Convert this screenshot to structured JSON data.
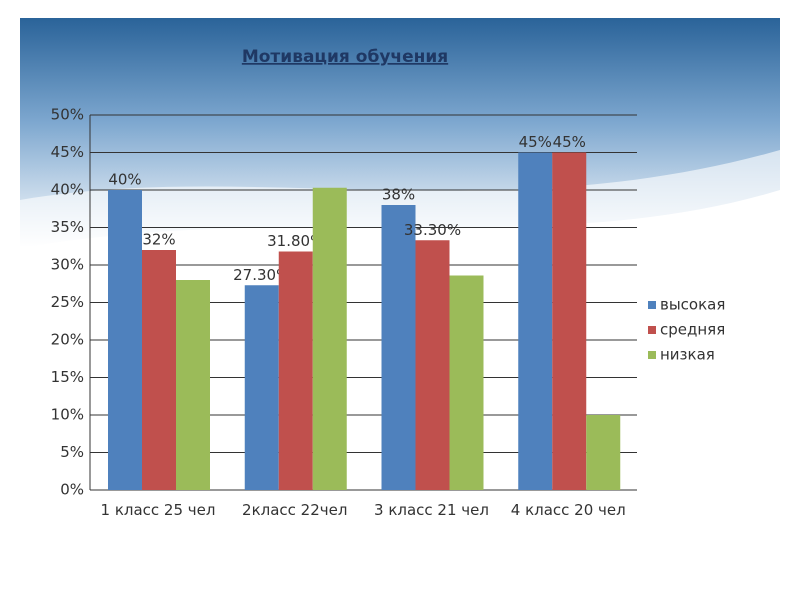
{
  "chart_data": {
    "type": "bar",
    "title": "Мотивация обучения",
    "categories": [
      "1 класс 25 чел",
      "2класс 22чел",
      "3 класс  21 чел",
      "4 класс 20 чел"
    ],
    "series": [
      {
        "name": "высокая",
        "color": "#4f81bd",
        "values": [
          40,
          27.3,
          38,
          45
        ],
        "value_labels": [
          "40%",
          "27.30%",
          "38%",
          "45%"
        ]
      },
      {
        "name": "средняя",
        "color": "#c0504d",
        "values": [
          32,
          31.8,
          33.3,
          45
        ],
        "value_labels": [
          "32%",
          "31.80%",
          "33.30%",
          "45%"
        ]
      },
      {
        "name": "низкая",
        "color": "#9bbb59",
        "values": [
          28,
          40.3,
          28.6,
          10
        ],
        "value_labels": [
          null,
          null,
          null,
          null
        ]
      }
    ],
    "ylim": [
      0,
      50
    ],
    "yticks": [
      {
        "value": 0,
        "label": "0%"
      },
      {
        "value": 5,
        "label": "5%"
      },
      {
        "value": 10,
        "label": "10%"
      },
      {
        "value": 15,
        "label": "15%"
      },
      {
        "value": 20,
        "label": "20%"
      },
      {
        "value": 25,
        "label": "25%"
      },
      {
        "value": 30,
        "label": "30%"
      },
      {
        "value": 35,
        "label": "35%"
      },
      {
        "value": 40,
        "label": "40%"
      },
      {
        "value": 45,
        "label": "45%"
      },
      {
        "value": 50,
        "label": "50%"
      }
    ],
    "grid": true,
    "legend": "right"
  }
}
